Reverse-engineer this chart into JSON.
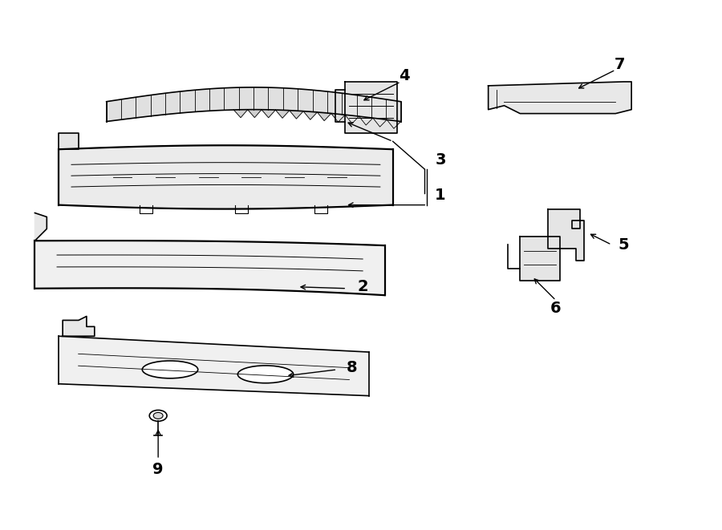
{
  "bg_color": "#ffffff",
  "line_color": "#000000",
  "label_color": "#000000",
  "fig_width": 9.0,
  "fig_height": 6.61,
  "dpi": 100
}
